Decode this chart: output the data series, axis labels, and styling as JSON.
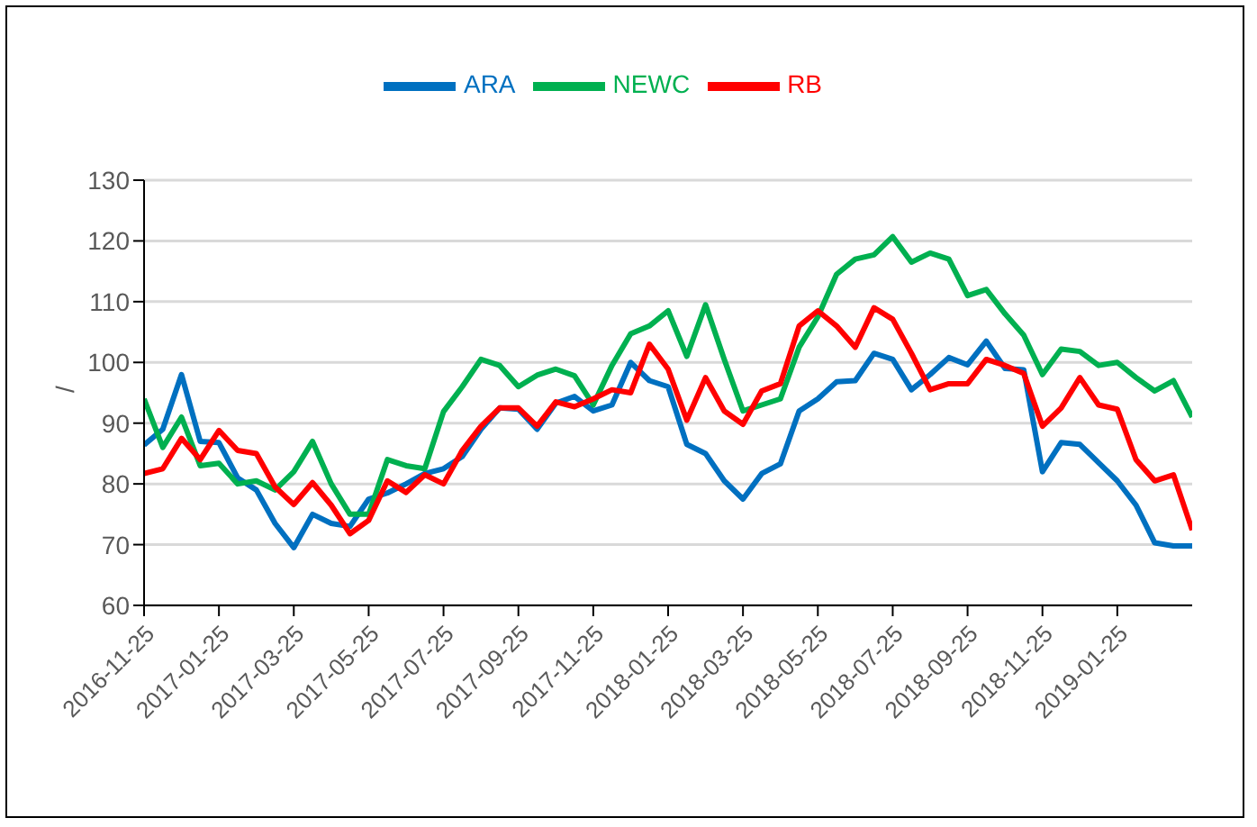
{
  "chart_data": {
    "type": "line",
    "ylabel": "/",
    "legend": "top",
    "grid": "y",
    "marker": "none",
    "line_style": "solid",
    "categories": [
      "2016-11-25",
      null,
      null,
      null,
      "2017-01-25",
      null,
      null,
      null,
      "2017-03-25",
      null,
      null,
      null,
      "2017-05-25",
      null,
      null,
      null,
      "2017-07-25",
      null,
      null,
      null,
      "2017-09-25",
      null,
      null,
      null,
      "2017-11-25",
      null,
      null,
      null,
      "2018-01-25",
      null,
      null,
      null,
      "2018-03-25",
      null,
      null,
      null,
      "2018-05-25",
      null,
      null,
      null,
      "2018-07-25",
      null,
      null,
      null,
      "2018-09-25",
      null,
      null,
      null,
      "2018-11-25",
      null,
      null,
      null,
      "2019-01-25",
      null,
      null,
      null,
      null
    ],
    "ylim": [
      60,
      130
    ],
    "yticks": [
      60,
      70,
      80,
      90,
      100,
      110,
      120,
      130
    ],
    "series": [
      {
        "name": "ARA",
        "color": "#0070c0",
        "values": [
          86.4,
          89,
          98,
          87,
          86.8,
          81,
          79,
          73.5,
          69.5,
          75,
          73.5,
          73,
          77.5,
          78.5,
          80,
          81.7,
          82.5,
          84.5,
          89,
          92.5,
          92.3,
          89,
          93.3,
          94.4,
          92,
          93,
          100,
          97,
          96,
          86.5,
          85,
          80.5,
          77.5,
          81.7,
          83.3,
          92,
          94,
          96.8,
          97,
          101.5,
          100.5,
          95.5,
          98,
          100.8,
          99.6,
          103.5,
          99,
          98.8,
          82,
          86.8,
          86.5,
          83.5,
          80.5,
          76.5,
          70.3,
          69.8,
          69.8
        ]
      },
      {
        "name": "NEWC",
        "color": "#00b050",
        "values": [
          94,
          86,
          91,
          83,
          83.4,
          80,
          80.5,
          79,
          82,
          87,
          80,
          75,
          75,
          84,
          83,
          82.5,
          91.9,
          96,
          100.5,
          99.5,
          96,
          97.9,
          98.9,
          97.8,
          93,
          99.5,
          104.7,
          106,
          108.5,
          101,
          109.5,
          100.5,
          92,
          93,
          94,
          102.5,
          107.5,
          114.5,
          117,
          117.7,
          120.7,
          116.5,
          118,
          117,
          111,
          112,
          108,
          104.5,
          98,
          102.2,
          101.8,
          99.5,
          100,
          97.5,
          95.3,
          97,
          91
        ]
      },
      {
        "name": "RB",
        "color": "#ff0000",
        "values": [
          81.7,
          82.5,
          87.5,
          84,
          88.8,
          85.5,
          85,
          79.5,
          76.6,
          80.2,
          76.5,
          71.8,
          74,
          80.5,
          78.6,
          81.5,
          80,
          85.5,
          89.5,
          92.5,
          92.5,
          89.5,
          93.5,
          92.7,
          94,
          95.5,
          95,
          103,
          98.9,
          90.5,
          97.5,
          92,
          89.8,
          95.3,
          96.5,
          106,
          108.5,
          106,
          102.5,
          109,
          107.1,
          101.5,
          95.5,
          96.5,
          96.5,
          100.5,
          99.5,
          98.2,
          89.5,
          92.5,
          97.5,
          93,
          92.3,
          84,
          80.5,
          81.5,
          72.4
        ]
      }
    ]
  }
}
